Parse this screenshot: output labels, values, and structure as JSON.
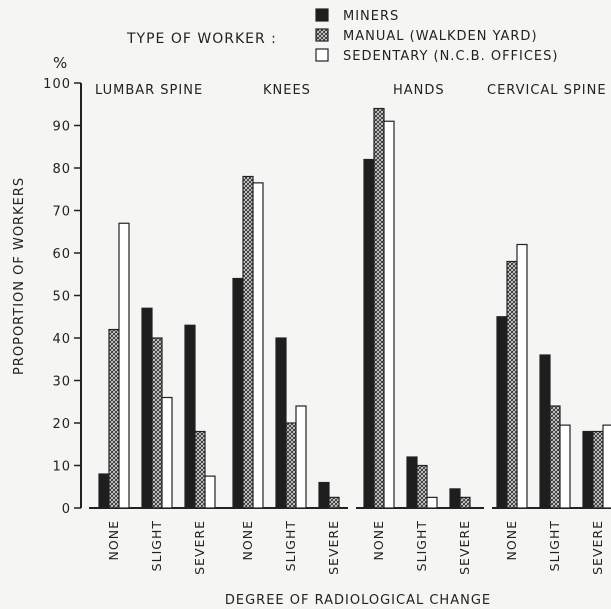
{
  "chart_data": {
    "type": "bar",
    "title_prefix": "TYPE OF WORKER :",
    "ylabel": "PROPORTION OF WORKERS",
    "yunit": "%",
    "xlabel": "DEGREE OF RADIOLOGICAL CHANGE",
    "ylim": [
      0,
      100
    ],
    "yticks": [
      "0",
      "10",
      "20",
      "30",
      "40",
      "50",
      "60",
      "70",
      "80",
      "90",
      "100"
    ],
    "categories": [
      "NONE",
      "SLIGHT",
      "SEVERE"
    ],
    "legend_position": "top",
    "series": [
      {
        "name": "MINERS",
        "fill": "#1e1e1e"
      },
      {
        "name": "MANUAL (WALKDEN YARD)",
        "fill": "hatch"
      },
      {
        "name": "SEDENTARY (N.C.B. OFFICES)",
        "fill": "#ffffff"
      }
    ],
    "panels": [
      {
        "name": "LUMBAR SPINE",
        "values": [
          [
            8,
            42,
            67
          ],
          [
            47,
            40,
            26
          ],
          [
            43,
            18,
            7.5
          ]
        ]
      },
      {
        "name": "KNEES",
        "values": [
          [
            54,
            78,
            76.5
          ],
          [
            40,
            20,
            24
          ],
          [
            6,
            2.5,
            0
          ]
        ]
      },
      {
        "name": "HANDS",
        "values": [
          [
            82,
            94,
            91
          ],
          [
            12,
            10,
            2.5
          ],
          [
            4.5,
            2.5,
            0
          ]
        ]
      },
      {
        "name": "CERVICAL SPINE",
        "values": [
          [
            45,
            58,
            62
          ],
          [
            36,
            24,
            19.5
          ],
          [
            18,
            18,
            19.5
          ]
        ]
      }
    ]
  }
}
